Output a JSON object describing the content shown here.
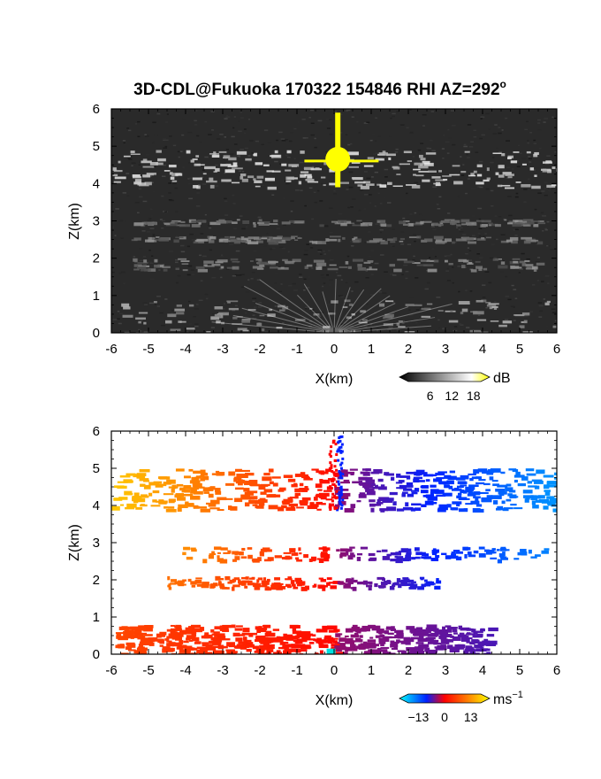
{
  "figure": {
    "title": "3D-CDL@Fukuoka 170322 154846 RHI AZ=292",
    "title_superscript": "o"
  },
  "chart_data": [
    {
      "type": "heatmap",
      "panel": "reflectivity",
      "xlabel": "X(km)",
      "ylabel": "Z(km)",
      "xlim": [
        -6,
        6
      ],
      "ylim": [
        0,
        6
      ],
      "xticks": [
        "-6",
        "-5",
        "-4",
        "-3",
        "-2",
        "-1",
        "0",
        "1",
        "2",
        "3",
        "4",
        "5",
        "6"
      ],
      "yticks": [
        "0",
        "1",
        "2",
        "3",
        "4",
        "5",
        "6"
      ],
      "colorbar": {
        "unit": "dB",
        "ticks": [
          "6",
          "12",
          "18"
        ],
        "range": [
          0,
          20
        ],
        "colors": [
          "#000000",
          "#ffffff",
          "#ffff00"
        ]
      },
      "layers": [
        {
          "feature": "cloud band",
          "z_bottom": 3.9,
          "z_top": 4.9,
          "x_range": [
            -6,
            6
          ],
          "level": "high"
        },
        {
          "feature": "faint layer",
          "z_bottom": 2.9,
          "z_top": 3.05,
          "x_range": [
            -5.5,
            5.5
          ],
          "level": "low"
        },
        {
          "feature": "faint layer",
          "z_bottom": 2.45,
          "z_top": 2.6,
          "x_range": [
            -5.5,
            5.5
          ],
          "level": "low"
        },
        {
          "feature": "faint layer",
          "z_bottom": 1.7,
          "z_top": 2.0,
          "x_range": [
            -5.5,
            5.5
          ],
          "level": "low"
        },
        {
          "feature": "boundary layer",
          "z_bottom": 0.0,
          "z_top": 0.9,
          "x_range": [
            -6,
            6
          ],
          "level": "medium"
        },
        {
          "feature": "strong echo",
          "z_bottom": 3.9,
          "z_top": 5.9,
          "x_range": [
            -0.8,
            1.2
          ],
          "level": "max"
        }
      ]
    },
    {
      "type": "heatmap",
      "panel": "doppler velocity",
      "xlabel": "X(km)",
      "ylabel": "Z(km)",
      "xlim": [
        -6,
        6
      ],
      "ylim": [
        0,
        6
      ],
      "xticks": [
        "-6",
        "-5",
        "-4",
        "-3",
        "-2",
        "-1",
        "0",
        "1",
        "2",
        "3",
        "4",
        "5",
        "6"
      ],
      "yticks": [
        "0",
        "1",
        "2",
        "3",
        "4",
        "5",
        "6"
      ],
      "colorbar": {
        "unit": "ms",
        "unit_superscript": "−1",
        "ticks": [
          "−13",
          "0",
          "13"
        ],
        "range": [
          -18,
          18
        ],
        "colors": [
          "#00ffff",
          "#0020ff",
          "#ff0000",
          "#ff8c00",
          "#ffff00"
        ]
      },
      "layers": [
        {
          "feature": "cloud layer",
          "z_bottom": 3.9,
          "z_top": 5.0,
          "x_range": [
            -6,
            6
          ],
          "v_left": 14,
          "v_right": -13
        },
        {
          "feature": "mid layer",
          "z_bottom": 2.55,
          "z_top": 2.9,
          "x_range": [
            -4.1,
            5.8
          ],
          "v_left": 10,
          "v_right": -12
        },
        {
          "feature": "mid layer",
          "z_bottom": 1.8,
          "z_top": 2.1,
          "x_range": [
            -4.5,
            2.8
          ],
          "v_left": 8,
          "v_right": -7
        },
        {
          "feature": "boundary layer",
          "z_bottom": 0.0,
          "z_top": 0.8,
          "x_range": [
            -5.9,
            4.2
          ],
          "v_left": 5,
          "v_right": -5
        }
      ]
    }
  ]
}
